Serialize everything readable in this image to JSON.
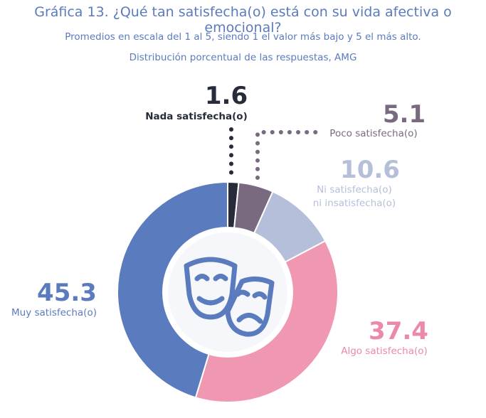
{
  "title": "Gráfica 13. ¿Qué tan satisfecha(o) está con su vida afectiva o emocional?",
  "subtitle_1": "Promedios en escala del 1 al 5, siendo 1 el valor más bajo y 5 el más alto.",
  "subtitle_2": "Distribución porcentual de las respuestas, AMG",
  "center_icon": "theater-masks-icon",
  "chart_data": {
    "type": "pie",
    "variant": "donut",
    "unit": "percent",
    "slices": [
      {
        "label": "Nada satisfecha(o)",
        "value": 1.6,
        "value_text": "1.6",
        "color": "#272b3a",
        "label_color": "#272b3a"
      },
      {
        "label": "Poco satisfecha(o)",
        "value": 5.1,
        "value_text": "5.1",
        "color": "#7a6a80",
        "label_color": "#7a6a80"
      },
      {
        "label_lines": [
          "Ni satisfecha(o)",
          "ni insatisfecha(o)"
        ],
        "value": 10.6,
        "value_text": "10.6",
        "color": "#b5bfda",
        "label_color": "#b5bfda"
      },
      {
        "label": "Algo satisfecha(o)",
        "value": 37.4,
        "value_text": "37.4",
        "color": "#f097b2",
        "label_color": "#ec89a8"
      },
      {
        "label": "Muy satisfecha(o)",
        "value": 45.3,
        "value_text": "45.3",
        "color": "#5b7bbf",
        "label_color": "#5b7bbf"
      }
    ]
  }
}
